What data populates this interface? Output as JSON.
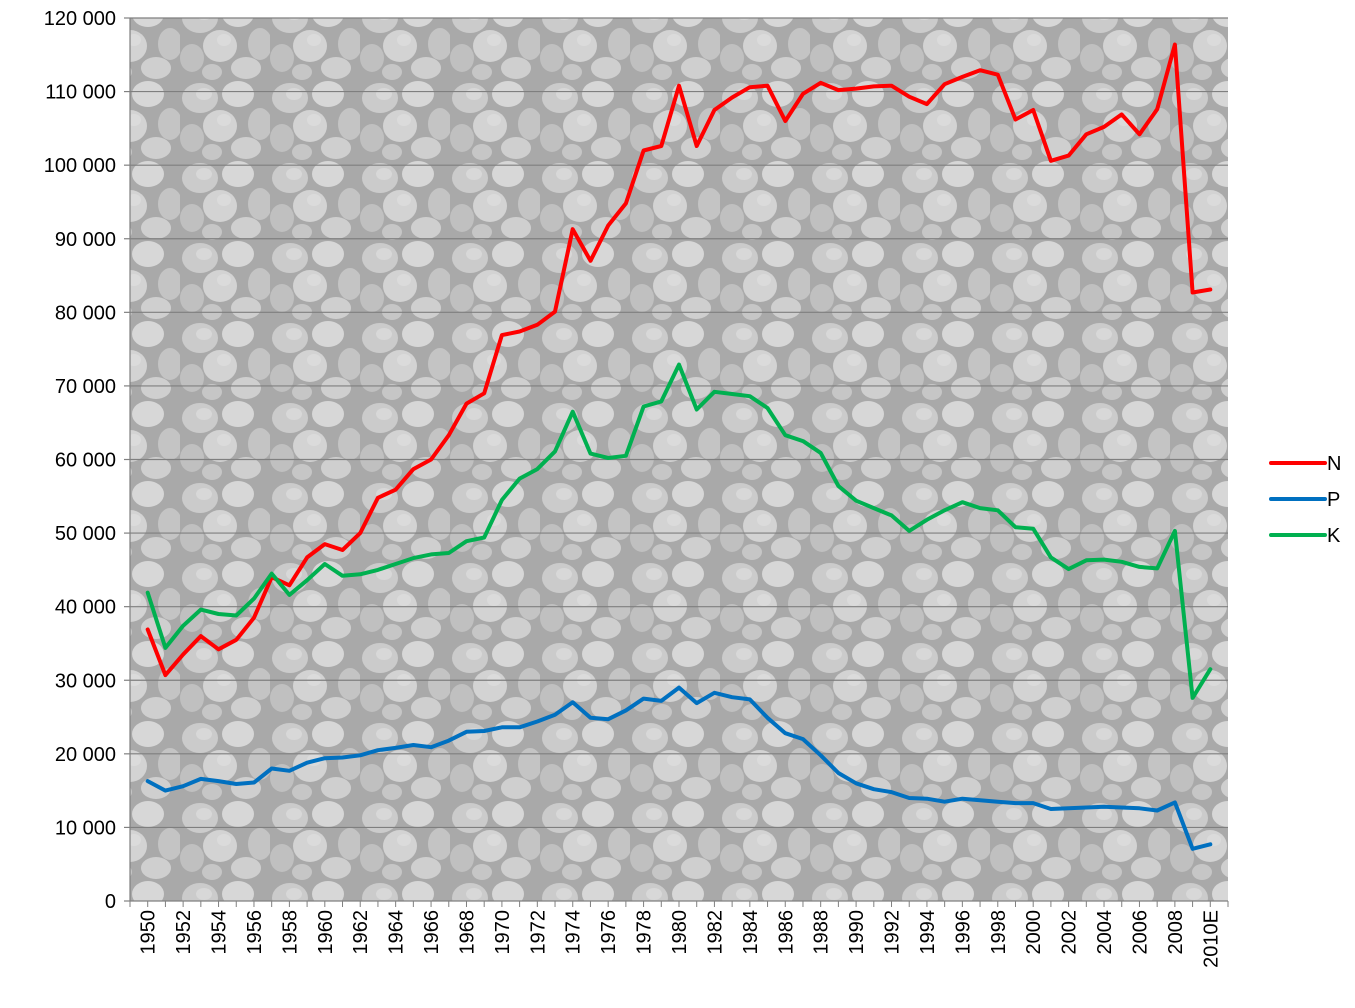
{
  "chart_data": {
    "type": "line",
    "title": "",
    "xlabel": "",
    "ylabel": "",
    "ylim": [
      0,
      120000
    ],
    "yticks": [
      "0",
      "10 000",
      "20 000",
      "30 000",
      "40 000",
      "50 000",
      "60 000",
      "70 000",
      "80 000",
      "90 000",
      "100 000",
      "110 000",
      "120 000"
    ],
    "ytick_values": [
      0,
      10000,
      20000,
      30000,
      40000,
      50000,
      60000,
      70000,
      80000,
      90000,
      100000,
      110000,
      120000
    ],
    "grid": true,
    "background": "fertilizer-granules-photo",
    "legend_position": "right",
    "x": [
      "1950",
      "1951",
      "1952",
      "1953",
      "1954",
      "1955",
      "1956",
      "1957",
      "1958",
      "1959",
      "1960",
      "1961",
      "1962",
      "1963",
      "1964",
      "1965",
      "1966",
      "1967",
      "1968",
      "1969",
      "1970",
      "1971",
      "1972",
      "1973",
      "1974",
      "1975",
      "1976",
      "1977",
      "1978",
      "1979",
      "1980",
      "1981",
      "1982",
      "1983",
      "1984",
      "1985",
      "1986",
      "1987",
      "1988",
      "1989",
      "1990",
      "1991",
      "1992",
      "1993",
      "1994",
      "1995",
      "1996",
      "1997",
      "1998",
      "1999",
      "2000",
      "2001",
      "2002",
      "2003",
      "2004",
      "2005",
      "2006",
      "2007",
      "2008",
      "2009",
      "2010E"
    ],
    "xtick_labels": [
      "1950",
      "",
      "1952",
      "",
      "1954",
      "",
      "1956",
      "",
      "1958",
      "",
      "1960",
      "",
      "1962",
      "",
      "1964",
      "",
      "1966",
      "",
      "1968",
      "",
      "1970",
      "",
      "1972",
      "",
      "1974",
      "",
      "1976",
      "",
      "1978",
      "",
      "1980",
      "",
      "1982",
      "",
      "1984",
      "",
      "1986",
      "",
      "1988",
      "",
      "1990",
      "",
      "1992",
      "",
      "1994",
      "",
      "1996",
      "",
      "1998",
      "",
      "2000",
      "",
      "2002",
      "",
      "2004",
      "",
      "2006",
      "",
      "2008",
      "",
      "2010E"
    ],
    "series": [
      {
        "name": "N",
        "color": "#ff0000",
        "values": [
          36900,
          30700,
          33500,
          36000,
          34200,
          35500,
          38500,
          44000,
          42900,
          46700,
          48500,
          47700,
          50000,
          54800,
          55900,
          58700,
          60000,
          63300,
          67600,
          69000,
          76900,
          77400,
          78300,
          80100,
          91300,
          87000,
          91800,
          94800,
          102000,
          102600,
          110800,
          102600,
          107500,
          109200,
          110600,
          110800,
          106000,
          109700,
          111200,
          110200,
          110400,
          110700,
          110800,
          109300,
          108300,
          111000,
          112000,
          112900,
          112300,
          106200,
          107500,
          100600,
          101300,
          104200,
          105200,
          106900,
          104200,
          107600,
          116400,
          82700,
          83100
        ]
      },
      {
        "name": "P",
        "color": "#0070c0",
        "values": [
          16300,
          15000,
          15600,
          16600,
          16300,
          15900,
          16100,
          18000,
          17700,
          18800,
          19400,
          19500,
          19800,
          20500,
          20800,
          21200,
          20900,
          21800,
          23000,
          23100,
          23600,
          23600,
          24400,
          25300,
          27000,
          24900,
          24700,
          25900,
          27500,
          27200,
          29000,
          26900,
          28300,
          27700,
          27400,
          24900,
          22800,
          22000,
          19800,
          17400,
          16000,
          15200,
          14800,
          14000,
          13900,
          13500,
          13900,
          13700,
          13500,
          13300,
          13300,
          12500,
          12600,
          12700,
          12800,
          12700,
          12600,
          12300,
          13400,
          7100,
          7700
        ]
      },
      {
        "name": "K",
        "color": "#00b050",
        "values": [
          41900,
          34400,
          37400,
          39600,
          39000,
          38800,
          41100,
          44500,
          41600,
          43600,
          45800,
          44200,
          44400,
          45000,
          45800,
          46600,
          47100,
          47300,
          48900,
          49400,
          54500,
          57400,
          58700,
          61100,
          66500,
          60800,
          60200,
          60500,
          67200,
          67900,
          72900,
          66800,
          69200,
          68900,
          68600,
          67000,
          63300,
          62500,
          60900,
          56400,
          54400,
          53400,
          52400,
          50300,
          51800,
          53100,
          54200,
          53400,
          53100,
          50800,
          50600,
          46700,
          45100,
          46300,
          46400,
          46100,
          45400,
          45200,
          50300,
          27600,
          31500
        ]
      }
    ]
  }
}
